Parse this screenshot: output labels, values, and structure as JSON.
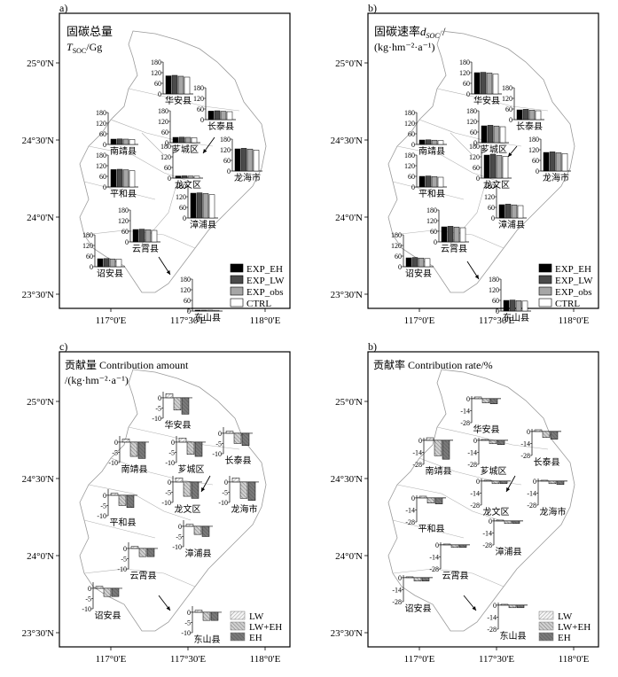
{
  "panel_a": {
    "letter": "a)",
    "title": "固碳总量",
    "subtitle_main": "T",
    "subtitle_sub": "SOC",
    "subtitle_unit": "/Gg",
    "legend": [
      "EXP_EH",
      "EXP_LW",
      "EXP_obs",
      "CTRL"
    ]
  },
  "panel_b": {
    "letter": "b)",
    "title_prefix": "固碳速率",
    "title_var": "d",
    "title_sub": "SOC",
    "title_suffix": " /",
    "unit": "(kg·hm⁻²·a⁻¹)",
    "legend": [
      "EXP_EH",
      "EXP_LW",
      "EXP_obs",
      "CTRL"
    ]
  },
  "panel_c": {
    "letter": "c)",
    "title": "贡献量 Contribution amount",
    "unit": "/(kg·hm⁻²·a⁻¹)",
    "legend": [
      "LW",
      "LW+EH",
      "EH"
    ]
  },
  "panel_d": {
    "letter": "b)",
    "title": "贡献率 Contribution rate/%",
    "legend": [
      "LW",
      "LW+EH",
      "EH"
    ]
  },
  "axes": {
    "lat_labels": [
      "25°0'N",
      "24°30'N",
      "24°0'N",
      "23°30'N"
    ],
    "lon_labels": [
      "117°0'E",
      "117°30'E",
      "118°0'E"
    ]
  },
  "counties": [
    "华安县",
    "长泰县",
    "南靖县",
    "芗城区",
    "龙文区",
    "龙海市",
    "平和县",
    "漳浦县",
    "云霄县",
    "诏安县",
    "东山县"
  ],
  "ticks_ab": [
    "180",
    "120",
    "60",
    "0"
  ],
  "ticks_c": [
    "0",
    "-5",
    "-10"
  ],
  "ticks_d": [
    "0",
    "-14",
    "-28"
  ],
  "colors": {
    "EH": "#000000",
    "LW": "#4a4a4a",
    "obs": "#a6a6a6",
    "CTRL": "#ffffff",
    "c_LW": "#e6e6e6",
    "c_LWEH": "#b8b8b8",
    "c_EH": "#6e6e6e"
  },
  "chart_data": [
    {
      "type": "bar",
      "panel": "a",
      "title": "固碳总量 T_SOC/Gg",
      "categories": [
        "华安县",
        "长泰县",
        "南靖县",
        "芗城区",
        "龙文区",
        "龙海市",
        "平和县",
        "漳浦县",
        "云霄县",
        "诏安县",
        "东山县"
      ],
      "series": [
        {
          "name": "EXP_EH",
          "values": [
            102,
            48,
            30,
            30,
            12,
            125,
            98,
            140,
            70,
            45,
            5
          ]
        },
        {
          "name": "EXP_LW",
          "values": [
            105,
            50,
            31,
            31,
            13,
            128,
            100,
            142,
            72,
            46,
            5
          ]
        },
        {
          "name": "EXP_obs",
          "values": [
            100,
            47,
            30,
            30,
            12,
            124,
            97,
            138,
            69,
            44,
            5
          ]
        },
        {
          "name": "CTRL",
          "values": [
            95,
            45,
            28,
            28,
            11,
            118,
            92,
            132,
            65,
            42,
            4
          ]
        }
      ],
      "ylim": [
        0,
        180
      ]
    },
    {
      "type": "bar",
      "panel": "b",
      "title": "固碳速率 d_SOC /(kg·hm⁻²·a⁻¹)",
      "categories": [
        "华安县",
        "长泰县",
        "南靖县",
        "芗城区",
        "龙文区",
        "龙海市",
        "平和县",
        "漳浦县",
        "云霄县",
        "诏安县",
        "东山县"
      ],
      "series": [
        {
          "name": "EXP_EH",
          "values": [
            120,
            55,
            25,
            95,
            130,
            105,
            60,
            75,
            85,
            50,
            60
          ]
        },
        {
          "name": "EXP_LW",
          "values": [
            122,
            58,
            26,
            98,
            135,
            108,
            62,
            78,
            88,
            52,
            62
          ]
        },
        {
          "name": "EXP_obs",
          "values": [
            118,
            54,
            24,
            94,
            128,
            103,
            59,
            74,
            84,
            49,
            59
          ]
        },
        {
          "name": "CTRL",
          "values": [
            112,
            50,
            22,
            90,
            122,
            98,
            55,
            70,
            80,
            46,
            56
          ]
        }
      ],
      "ylim": [
        0,
        180
      ]
    },
    {
      "type": "bar",
      "panel": "c",
      "title": "贡献量 Contribution amount /(kg·hm⁻²·a⁻¹)",
      "categories": [
        "华安县",
        "长泰县",
        "南靖县",
        "芗城区",
        "龙文区",
        "龙海市",
        "平和县",
        "漳浦县",
        "云霄县",
        "诏安县",
        "东山县"
      ],
      "series": [
        {
          "name": "LW",
          "values": [
            2,
            1,
            1.5,
            2,
            2,
            2,
            1,
            1,
            1,
            1,
            1
          ]
        },
        {
          "name": "LW+EH",
          "values": [
            -6,
            -5,
            -7,
            -6,
            -7,
            -8,
            -5,
            -4,
            -4,
            -4,
            -4
          ]
        },
        {
          "name": "EH",
          "values": [
            -8,
            -6,
            -8,
            -7,
            -8,
            -9,
            -6,
            -5,
            -4,
            -4,
            -4
          ]
        }
      ],
      "ylim": [
        -10,
        3
      ]
    },
    {
      "type": "bar",
      "panel": "d",
      "title": "贡献率 Contribution rate/%",
      "categories": [
        "华安县",
        "长泰县",
        "南靖县",
        "芗城区",
        "龙文区",
        "龙海市",
        "平和县",
        "漳浦县",
        "云霄县",
        "诏安县",
        "东山县"
      ],
      "series": [
        {
          "name": "LW",
          "values": [
            2,
            2,
            3,
            1,
            1,
            1,
            2,
            1,
            1,
            1,
            1
          ]
        },
        {
          "name": "LW+EH",
          "values": [
            -5,
            -7,
            -18,
            -4,
            -3,
            -3,
            -6,
            -3,
            -3,
            -4,
            -3
          ]
        },
        {
          "name": "EH",
          "values": [
            -6,
            -9,
            -22,
            -5,
            -3,
            -4,
            -7,
            -3,
            -3,
            -4,
            -3
          ]
        }
      ],
      "ylim": [
        -28,
        3
      ]
    }
  ]
}
